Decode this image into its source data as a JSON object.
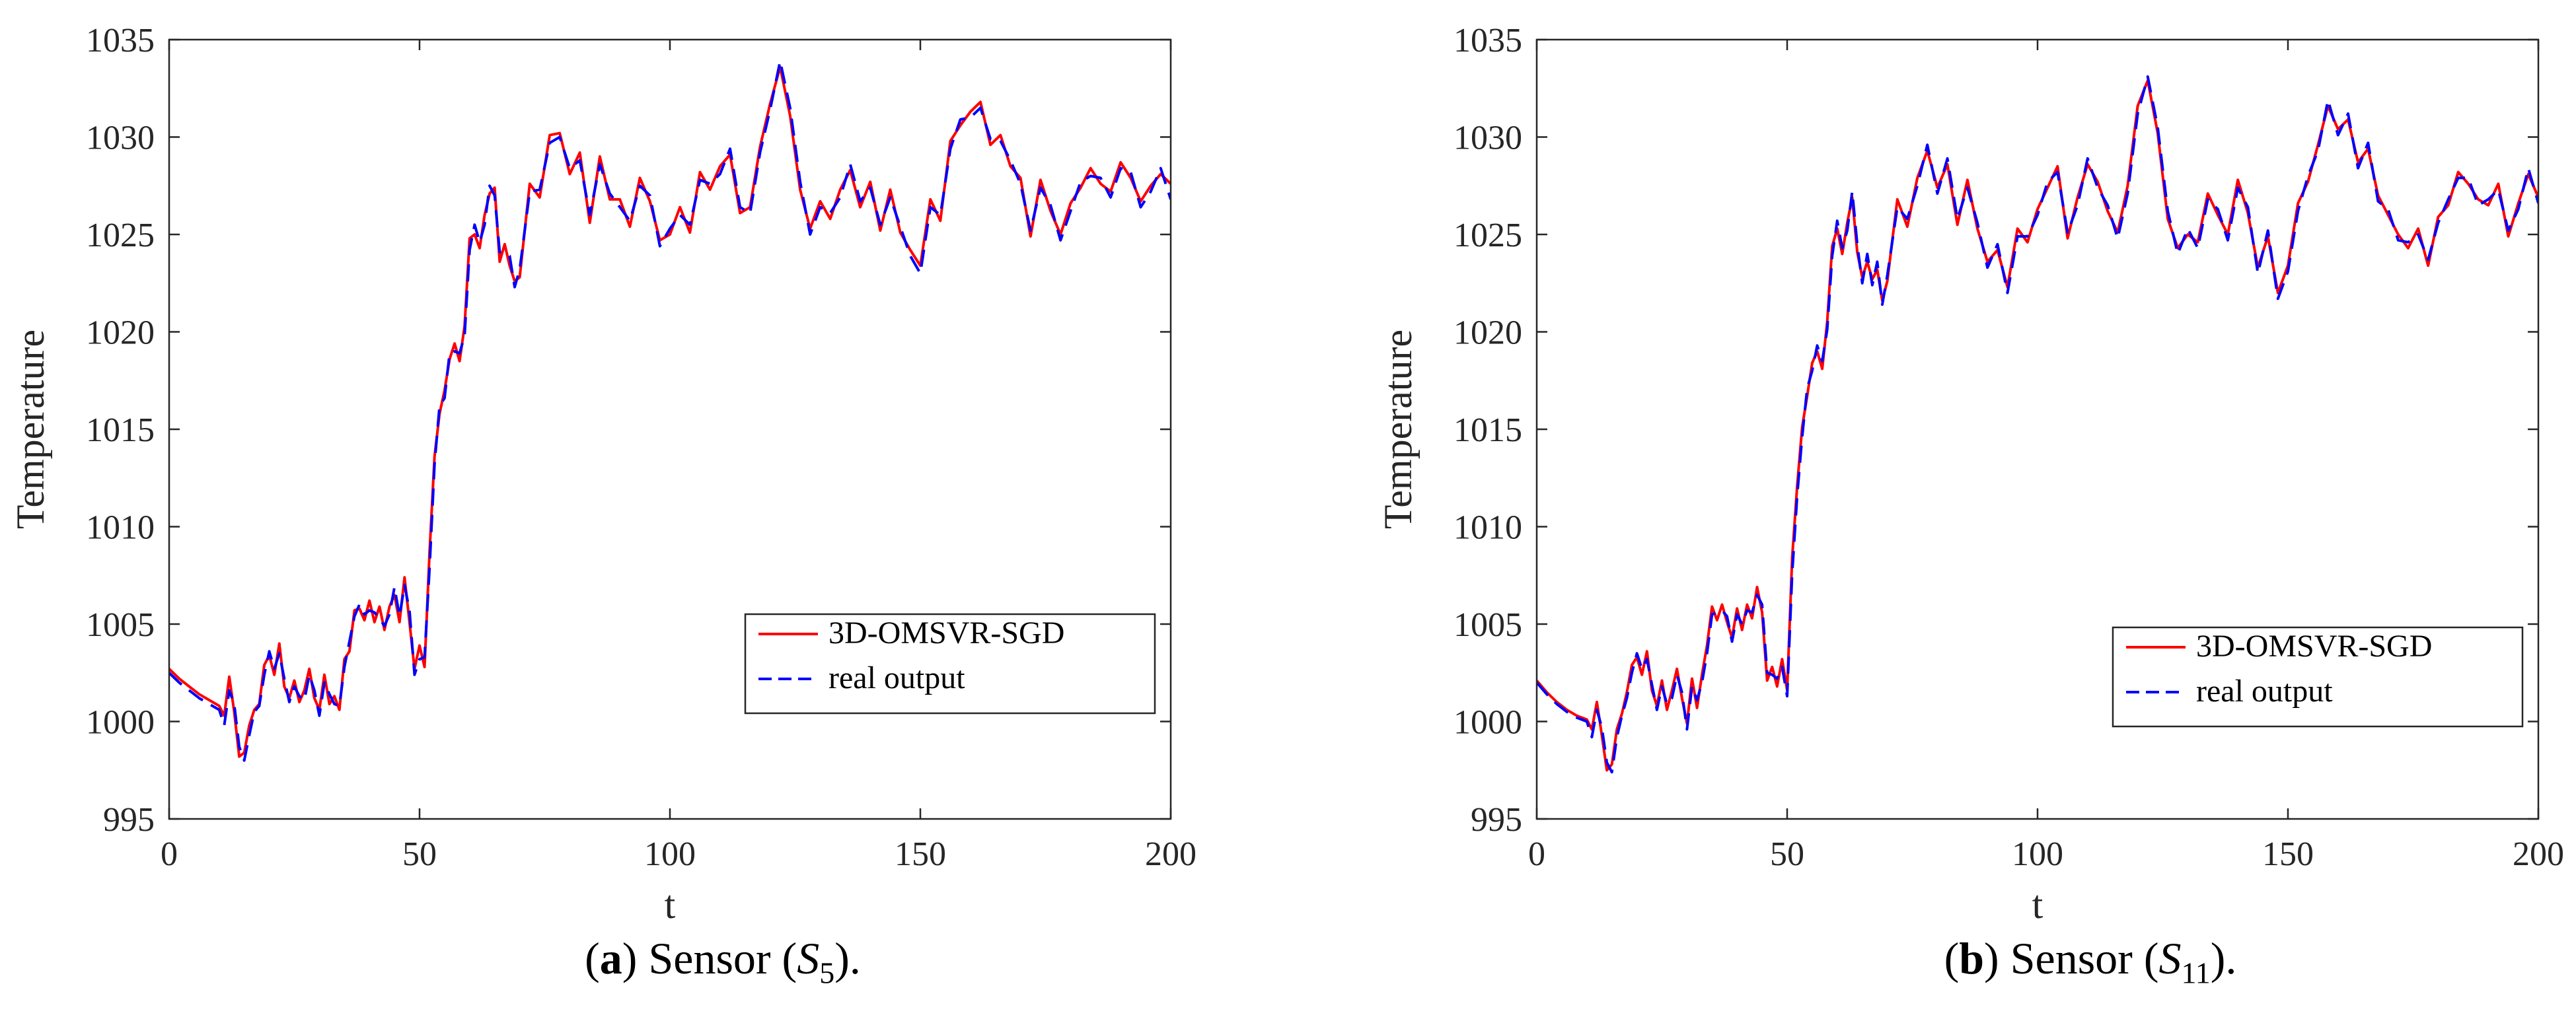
{
  "colors": {
    "prediction": "#ff0000",
    "real": "#0000ff",
    "axis": "#262626"
  },
  "chart_data": [
    {
      "type": "line",
      "panel": "a",
      "caption": {
        "letter": "a",
        "text": "Sensor",
        "symbol": "S",
        "subscript": "5"
      },
      "xlabel": "t",
      "ylabel": "Temperature",
      "xlim": [
        0,
        200
      ],
      "ylim": [
        995,
        1035
      ],
      "xticks": [
        "0",
        "50",
        "100",
        "150",
        "200"
      ],
      "yticks": [
        "995",
        "1000",
        "1005",
        "1010",
        "1015",
        "1020",
        "1025",
        "1030",
        "1035"
      ],
      "legend": {
        "position": "center-right",
        "entries": [
          "3D-OMSVR-SGD",
          "real output"
        ]
      },
      "x": [
        0,
        2,
        4,
        6,
        8,
        10,
        11,
        12,
        13,
        14,
        15,
        16,
        17,
        18,
        19,
        20,
        21,
        22,
        23,
        24,
        25,
        26,
        27,
        28,
        29,
        30,
        31,
        32,
        33,
        34,
        35,
        36,
        37,
        38,
        39,
        40,
        41,
        42,
        43,
        44,
        45,
        46,
        47,
        48,
        49,
        50,
        51,
        52,
        53,
        54,
        55,
        56,
        57,
        58,
        59,
        60,
        61,
        62,
        63,
        64,
        65,
        66,
        67,
        68,
        69,
        70,
        72,
        74,
        76,
        78,
        80,
        82,
        84,
        86,
        88,
        90,
        92,
        94,
        96,
        98,
        100,
        102,
        104,
        106,
        108,
        110,
        112,
        114,
        116,
        118,
        120,
        122,
        124,
        126,
        128,
        130,
        132,
        134,
        136,
        138,
        140,
        142,
        144,
        146,
        148,
        150,
        152,
        154,
        156,
        158,
        160,
        162,
        164,
        166,
        168,
        170,
        172,
        174,
        176,
        178,
        180,
        182,
        184,
        186,
        188,
        190,
        192,
        194,
        196,
        198,
        200
      ],
      "series": [
        {
          "name": "3D-OMSVR-SGD",
          "values": [
            1002.7,
            1002.2,
            1001.8,
            1001.4,
            1001.1,
            1000.8,
            1000.3,
            1002.3,
            1000.5,
            998.2,
            998.4,
            999.8,
            1000.6,
            1000.9,
            1002.9,
            1003.4,
            1002.4,
            1004.0,
            1001.8,
            1001.2,
            1002.1,
            1001.0,
            1001.6,
            1002.7,
            1001.2,
            1000.6,
            1002.4,
            1000.9,
            1001.3,
            1000.6,
            1003.2,
            1003.6,
            1005.7,
            1005.8,
            1005.2,
            1006.2,
            1005.1,
            1005.9,
            1004.7,
            1005.9,
            1006.5,
            1005.1,
            1007.4,
            1005.1,
            1002.7,
            1003.9,
            1002.8,
            1008.7,
            1013.6,
            1015.8,
            1017.0,
            1018.6,
            1019.4,
            1018.5,
            1020.3,
            1024.8,
            1025.0,
            1024.3,
            1026.0,
            1027.1,
            1027.4,
            1023.6,
            1024.5,
            1023.4,
            1022.6,
            1022.8,
            1027.6,
            1026.9,
            1030.1,
            1030.2,
            1028.1,
            1029.2,
            1025.6,
            1029.0,
            1026.8,
            1026.8,
            1025.4,
            1027.9,
            1026.7,
            1024.7,
            1025.0,
            1026.4,
            1025.1,
            1028.2,
            1027.3,
            1028.5,
            1029.1,
            1026.1,
            1026.4,
            1029.5,
            1031.7,
            1033.6,
            1031.1,
            1027.3,
            1025.3,
            1026.7,
            1025.8,
            1027.3,
            1028.3,
            1026.4,
            1027.7,
            1025.2,
            1027.3,
            1025.1,
            1024.2,
            1023.4,
            1026.8,
            1025.7,
            1029.8,
            1030.6,
            1031.3,
            1031.8,
            1029.6,
            1030.1,
            1028.5,
            1027.9,
            1024.9,
            1027.8,
            1026.2,
            1025.0,
            1026.6,
            1027.4,
            1028.4,
            1027.6,
            1027.2,
            1028.7,
            1027.9,
            1026.7,
            1027.5,
            1028.1,
            1027.6
          ]
        },
        {
          "name": "real output",
          "values": [
            1002.5,
            1002.0,
            1001.6,
            1001.2,
            1000.9,
            1000.6,
            999.8,
            1001.6,
            1000.9,
            998.7,
            998.0,
            999.3,
            1000.5,
            1000.8,
            1002.4,
            1003.6,
            1002.7,
            1003.5,
            1002.2,
            1001.0,
            1001.8,
            1001.3,
            1001.1,
            1002.4,
            1001.6,
            1000.3,
            1002.0,
            1001.4,
            1000.9,
            1000.8,
            1002.8,
            1004.1,
            1005.4,
            1006.0,
            1005.5,
            1005.7,
            1005.6,
            1005.3,
            1004.9,
            1005.5,
            1006.9,
            1005.4,
            1007.0,
            1005.7,
            1002.4,
            1003.2,
            1003.3,
            1007.9,
            1013.2,
            1016.2,
            1016.6,
            1018.9,
            1019.0,
            1018.9,
            1019.8,
            1024.2,
            1025.5,
            1024.6,
            1025.5,
            1027.5,
            1027.0,
            1024.1,
            1024.0,
            1023.9,
            1022.3,
            1023.2,
            1027.2,
            1027.3,
            1029.7,
            1030.0,
            1028.4,
            1028.8,
            1026.0,
            1028.6,
            1027.1,
            1026.4,
            1025.7,
            1027.5,
            1027.0,
            1024.4,
            1025.3,
            1026.0,
            1025.5,
            1027.8,
            1027.6,
            1028.1,
            1029.4,
            1026.4,
            1026.1,
            1029.2,
            1031.4,
            1033.9,
            1031.5,
            1027.7,
            1025.0,
            1026.4,
            1026.1,
            1026.9,
            1028.6,
            1026.7,
            1027.4,
            1025.5,
            1026.9,
            1025.4,
            1023.9,
            1023.0,
            1026.4,
            1026.0,
            1029.4,
            1030.9,
            1031.0,
            1031.5,
            1029.9,
            1029.8,
            1028.8,
            1027.6,
            1025.2,
            1027.4,
            1026.5,
            1024.7,
            1026.2,
            1027.7,
            1028.0,
            1027.9,
            1026.9,
            1028.4,
            1028.2,
            1026.4,
            1027.2,
            1028.4,
            1026.8
          ]
        }
      ]
    },
    {
      "type": "line",
      "panel": "b",
      "caption": {
        "letter": "b",
        "text": "Sensor",
        "symbol": "S",
        "subscript": "11"
      },
      "xlabel": "t",
      "ylabel": "Temperature",
      "xlim": [
        0,
        200
      ],
      "ylim": [
        995,
        1035
      ],
      "xticks": [
        "0",
        "50",
        "100",
        "150",
        "200"
      ],
      "yticks": [
        "995",
        "1000",
        "1005",
        "1010",
        "1015",
        "1020",
        "1025",
        "1030",
        "1035"
      ],
      "legend": {
        "position": "center-right",
        "entries": [
          "3D-OMSVR-SGD",
          "real output"
        ]
      },
      "x": [
        0,
        2,
        4,
        6,
        8,
        10,
        11,
        12,
        13,
        14,
        15,
        16,
        17,
        18,
        19,
        20,
        21,
        22,
        23,
        24,
        25,
        26,
        27,
        28,
        29,
        30,
        31,
        32,
        33,
        34,
        35,
        36,
        37,
        38,
        39,
        40,
        41,
        42,
        43,
        44,
        45,
        46,
        47,
        48,
        49,
        50,
        51,
        52,
        53,
        54,
        55,
        56,
        57,
        58,
        59,
        60,
        61,
        62,
        63,
        64,
        65,
        66,
        67,
        68,
        69,
        70,
        72,
        74,
        76,
        78,
        80,
        82,
        84,
        86,
        88,
        90,
        92,
        94,
        96,
        98,
        100,
        102,
        104,
        106,
        108,
        110,
        112,
        114,
        116,
        118,
        120,
        122,
        124,
        126,
        128,
        130,
        132,
        134,
        136,
        138,
        140,
        142,
        144,
        146,
        148,
        150,
        152,
        154,
        156,
        158,
        160,
        162,
        164,
        166,
        168,
        170,
        172,
        174,
        176,
        178,
        180,
        182,
        184,
        186,
        188,
        190,
        192,
        194,
        196,
        198,
        200
      ],
      "series": [
        {
          "name": "3D-OMSVR-SGD",
          "values": [
            1002.1,
            1001.5,
            1001.0,
            1000.6,
            1000.3,
            1000.1,
            999.6,
            1001.0,
            999.3,
            997.5,
            997.8,
            999.6,
            1000.4,
            1001.5,
            1002.9,
            1003.3,
            1002.4,
            1003.6,
            1001.6,
            1000.8,
            1002.1,
            1000.6,
            1001.6,
            1002.7,
            1001.2,
            999.9,
            1002.2,
            1000.7,
            1002.4,
            1003.9,
            1005.9,
            1005.2,
            1006.0,
            1005.1,
            1004.3,
            1005.8,
            1004.7,
            1006.0,
            1005.3,
            1006.9,
            1005.6,
            1002.1,
            1002.8,
            1001.8,
            1003.2,
            1001.6,
            1008.4,
            1012.1,
            1015.1,
            1016.7,
            1018.4,
            1019.0,
            1018.1,
            1020.5,
            1024.4,
            1025.3,
            1024.0,
            1025.6,
            1026.9,
            1024.1,
            1022.8,
            1023.6,
            1022.7,
            1023.2,
            1021.6,
            1022.6,
            1026.8,
            1025.4,
            1027.9,
            1029.3,
            1027.4,
            1028.6,
            1025.5,
            1027.8,
            1025.3,
            1023.6,
            1024.2,
            1022.3,
            1025.3,
            1024.6,
            1026.3,
            1027.4,
            1028.5,
            1024.8,
            1026.9,
            1028.6,
            1027.7,
            1026.2,
            1025.1,
            1027.5,
            1031.6,
            1032.9,
            1030.2,
            1025.8,
            1024.3,
            1025.0,
            1024.6,
            1027.1,
            1026.0,
            1025.0,
            1027.8,
            1026.1,
            1023.3,
            1024.9,
            1022.0,
            1023.4,
            1026.6,
            1027.7,
            1029.6,
            1031.6,
            1030.4,
            1030.9,
            1028.7,
            1029.4,
            1027.0,
            1026.0,
            1025.0,
            1024.3,
            1025.3,
            1023.4,
            1025.9,
            1026.5,
            1028.2,
            1027.6,
            1026.8,
            1026.5,
            1027.6,
            1024.9,
            1026.6,
            1028.1,
            1026.9
          ]
        },
        {
          "name": "real output",
          "values": [
            1002.0,
            1001.4,
            1000.9,
            1000.5,
            1000.2,
            1000.0,
            999.2,
            1000.6,
            999.7,
            997.9,
            997.4,
            999.2,
            1000.3,
            1001.2,
            1002.5,
            1003.5,
            1002.7,
            1003.2,
            1001.9,
            1000.6,
            1001.8,
            1000.9,
            1001.2,
            1002.4,
            1001.5,
            999.6,
            1001.8,
            1001.1,
            1002.0,
            1003.5,
            1005.5,
            1005.6,
            1005.7,
            1005.4,
            1004.1,
            1005.5,
            1005.0,
            1005.7,
            1005.6,
            1006.5,
            1006.0,
            1002.5,
            1002.4,
            1002.2,
            1002.8,
            1001.3,
            1007.6,
            1011.6,
            1014.6,
            1017.1,
            1018.0,
            1019.3,
            1018.5,
            1020.1,
            1023.9,
            1025.7,
            1024.3,
            1025.2,
            1027.2,
            1024.5,
            1022.5,
            1024.0,
            1022.4,
            1023.6,
            1021.4,
            1022.9,
            1026.4,
            1025.8,
            1027.5,
            1029.6,
            1027.1,
            1028.9,
            1025.8,
            1027.4,
            1025.6,
            1023.3,
            1024.5,
            1022.0,
            1024.9,
            1024.9,
            1026.0,
            1027.7,
            1028.2,
            1025.1,
            1026.5,
            1028.9,
            1027.4,
            1026.5,
            1024.8,
            1027.1,
            1031.2,
            1033.1,
            1030.5,
            1026.2,
            1024.0,
            1025.3,
            1024.3,
            1026.8,
            1026.3,
            1024.7,
            1027.4,
            1026.4,
            1023.0,
            1025.2,
            1021.7,
            1023.1,
            1026.2,
            1028.0,
            1029.3,
            1031.9,
            1030.1,
            1031.2,
            1028.4,
            1029.7,
            1026.7,
            1026.3,
            1024.7,
            1024.6,
            1025.0,
            1023.7,
            1025.6,
            1026.8,
            1027.9,
            1027.9,
            1026.5,
            1026.8,
            1027.3,
            1025.2,
            1026.3,
            1028.4,
            1026.6
          ]
        }
      ]
    }
  ]
}
